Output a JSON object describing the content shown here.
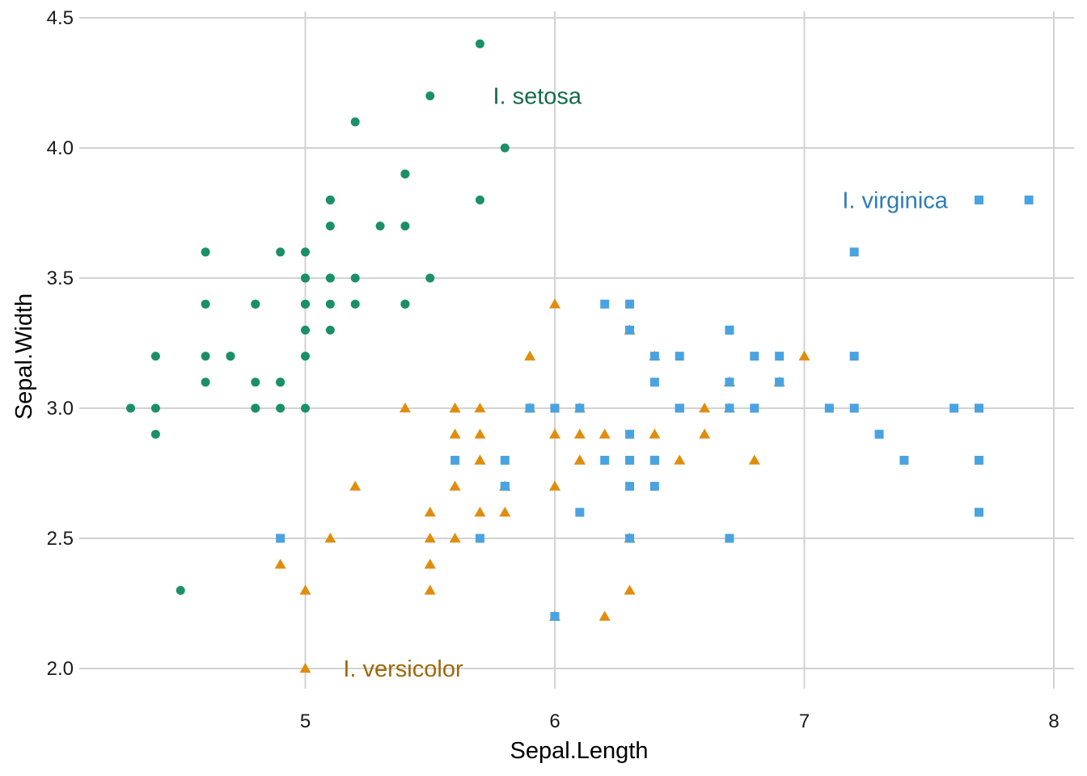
{
  "chart_data": {
    "type": "scatter",
    "xlabel": "Sepal.Length",
    "ylabel": "Sepal.Width",
    "xlim": [
      4.2,
      8.1
    ],
    "ylim": [
      1.85,
      4.55
    ],
    "x_ticks": [
      5,
      6,
      7,
      8
    ],
    "x_tick_labels": [
      "5",
      "6",
      "7",
      "8"
    ],
    "y_ticks": [
      2.0,
      2.5,
      3.0,
      3.5,
      4.0,
      4.5
    ],
    "y_tick_labels": [
      "2.0",
      "2.5",
      "3.0",
      "3.5",
      "4.0",
      "4.5"
    ],
    "grid": true,
    "legend": "none (direct labels)",
    "series": [
      {
        "name": "I. setosa",
        "marker": "circle",
        "color": "#1b9068",
        "label_color": "#156b4e",
        "label_x": 5.7,
        "label_y": 4.2,
        "points": [
          [
            5.1,
            3.5
          ],
          [
            4.9,
            3.0
          ],
          [
            4.7,
            3.2
          ],
          [
            4.6,
            3.1
          ],
          [
            5.0,
            3.6
          ],
          [
            5.4,
            3.9
          ],
          [
            4.6,
            3.4
          ],
          [
            5.0,
            3.4
          ],
          [
            4.4,
            2.9
          ],
          [
            4.9,
            3.1
          ],
          [
            5.4,
            3.7
          ],
          [
            4.8,
            3.4
          ],
          [
            4.8,
            3.0
          ],
          [
            4.3,
            3.0
          ],
          [
            5.8,
            4.0
          ],
          [
            5.7,
            4.4
          ],
          [
            5.4,
            3.9
          ],
          [
            5.1,
            3.5
          ],
          [
            5.7,
            3.8
          ],
          [
            5.1,
            3.8
          ],
          [
            5.4,
            3.4
          ],
          [
            5.1,
            3.7
          ],
          [
            4.6,
            3.6
          ],
          [
            5.1,
            3.3
          ],
          [
            4.8,
            3.4
          ],
          [
            5.0,
            3.0
          ],
          [
            5.0,
            3.4
          ],
          [
            5.2,
            3.5
          ],
          [
            5.2,
            3.4
          ],
          [
            4.7,
            3.2
          ],
          [
            4.8,
            3.1
          ],
          [
            5.4,
            3.4
          ],
          [
            5.2,
            4.1
          ],
          [
            5.5,
            4.2
          ],
          [
            4.9,
            3.1
          ],
          [
            5.0,
            3.2
          ],
          [
            5.5,
            3.5
          ],
          [
            4.9,
            3.6
          ],
          [
            4.4,
            3.0
          ],
          [
            5.1,
            3.4
          ],
          [
            5.0,
            3.5
          ],
          [
            4.5,
            2.3
          ],
          [
            4.4,
            3.2
          ],
          [
            5.0,
            3.5
          ],
          [
            5.1,
            3.8
          ],
          [
            4.8,
            3.0
          ],
          [
            5.1,
            3.8
          ],
          [
            4.6,
            3.2
          ],
          [
            5.3,
            3.7
          ],
          [
            5.0,
            3.3
          ]
        ]
      },
      {
        "name": "I. versicolor",
        "marker": "triangle",
        "color": "#e08d0e",
        "label_color": "#a0680a",
        "label_x": 5.1,
        "label_y": 2.0,
        "points": [
          [
            7.0,
            3.2
          ],
          [
            6.4,
            3.2
          ],
          [
            6.9,
            3.1
          ],
          [
            5.5,
            2.3
          ],
          [
            6.5,
            2.8
          ],
          [
            5.7,
            2.8
          ],
          [
            6.3,
            3.3
          ],
          [
            4.9,
            2.4
          ],
          [
            6.6,
            2.9
          ],
          [
            5.2,
            2.7
          ],
          [
            5.0,
            2.0
          ],
          [
            5.9,
            3.0
          ],
          [
            6.0,
            2.2
          ],
          [
            6.1,
            2.9
          ],
          [
            5.6,
            2.9
          ],
          [
            6.7,
            3.1
          ],
          [
            5.6,
            3.0
          ],
          [
            5.8,
            2.7
          ],
          [
            6.2,
            2.2
          ],
          [
            5.6,
            2.5
          ],
          [
            5.9,
            3.2
          ],
          [
            6.1,
            2.8
          ],
          [
            6.3,
            2.5
          ],
          [
            6.1,
            2.8
          ],
          [
            6.4,
            2.9
          ],
          [
            6.6,
            3.0
          ],
          [
            6.8,
            2.8
          ],
          [
            6.7,
            3.0
          ],
          [
            6.0,
            2.9
          ],
          [
            5.7,
            2.6
          ],
          [
            5.5,
            2.4
          ],
          [
            5.5,
            2.4
          ],
          [
            5.8,
            2.7
          ],
          [
            6.0,
            2.7
          ],
          [
            5.4,
            3.0
          ],
          [
            6.0,
            3.4
          ],
          [
            6.7,
            3.1
          ],
          [
            6.3,
            2.3
          ],
          [
            5.6,
            3.0
          ],
          [
            5.5,
            2.5
          ],
          [
            5.5,
            2.6
          ],
          [
            6.1,
            3.0
          ],
          [
            5.8,
            2.6
          ],
          [
            5.0,
            2.3
          ],
          [
            5.6,
            2.7
          ],
          [
            5.7,
            3.0
          ],
          [
            5.7,
            2.9
          ],
          [
            6.2,
            2.9
          ],
          [
            5.1,
            2.5
          ],
          [
            5.7,
            2.8
          ]
        ]
      },
      {
        "name": "I. virginica",
        "marker": "square",
        "color": "#4aa3e0",
        "label_color": "#2d7db3",
        "label_x": 7.1,
        "label_y": 3.8,
        "points": [
          [
            6.3,
            3.3
          ],
          [
            5.8,
            2.7
          ],
          [
            7.1,
            3.0
          ],
          [
            6.3,
            2.9
          ],
          [
            6.5,
            3.0
          ],
          [
            7.6,
            3.0
          ],
          [
            4.9,
            2.5
          ],
          [
            7.3,
            2.9
          ],
          [
            6.7,
            2.5
          ],
          [
            7.2,
            3.6
          ],
          [
            6.5,
            3.2
          ],
          [
            6.4,
            2.7
          ],
          [
            6.8,
            3.0
          ],
          [
            5.7,
            2.5
          ],
          [
            5.8,
            2.8
          ],
          [
            6.4,
            3.2
          ],
          [
            6.5,
            3.0
          ],
          [
            7.7,
            3.8
          ],
          [
            7.7,
            2.6
          ],
          [
            6.0,
            2.2
          ],
          [
            6.9,
            3.2
          ],
          [
            5.6,
            2.8
          ],
          [
            7.7,
            2.8
          ],
          [
            6.3,
            2.7
          ],
          [
            6.7,
            3.3
          ],
          [
            7.2,
            3.2
          ],
          [
            6.2,
            2.8
          ],
          [
            6.1,
            3.0
          ],
          [
            6.4,
            2.8
          ],
          [
            7.2,
            3.0
          ],
          [
            7.4,
            2.8
          ],
          [
            7.9,
            3.8
          ],
          [
            6.4,
            2.8
          ],
          [
            6.3,
            2.8
          ],
          [
            6.1,
            2.6
          ],
          [
            7.7,
            3.0
          ],
          [
            6.3,
            3.4
          ],
          [
            6.4,
            3.1
          ],
          [
            6.0,
            3.0
          ],
          [
            6.9,
            3.1
          ],
          [
            6.7,
            3.1
          ],
          [
            6.9,
            3.1
          ],
          [
            5.8,
            2.7
          ],
          [
            6.8,
            3.2
          ],
          [
            6.7,
            3.3
          ],
          [
            6.7,
            3.0
          ],
          [
            6.3,
            2.5
          ],
          [
            6.5,
            3.0
          ],
          [
            6.2,
            3.4
          ],
          [
            5.9,
            3.0
          ]
        ]
      }
    ]
  }
}
